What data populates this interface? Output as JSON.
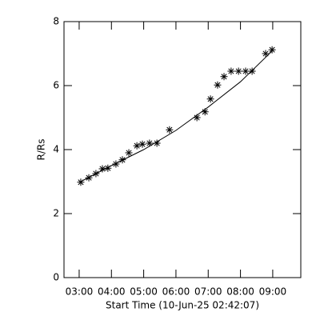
{
  "chart_data": {
    "type": "scatter",
    "xlabel": "Start Time (10-Jun-25 02:42:07)",
    "ylabel": "R/Rs",
    "x": [
      3.05,
      3.3,
      3.52,
      3.72,
      3.89,
      4.14,
      4.34,
      4.54,
      4.79,
      4.96,
      5.18,
      5.41,
      5.8,
      6.65,
      6.9,
      7.07,
      7.29,
      7.49,
      7.71,
      7.94,
      8.16,
      8.36,
      8.78,
      8.98
    ],
    "y": [
      2.98,
      3.12,
      3.25,
      3.4,
      3.42,
      3.55,
      3.68,
      3.9,
      4.12,
      4.17,
      4.2,
      4.2,
      4.62,
      5.0,
      5.18,
      5.58,
      6.02,
      6.28,
      6.45,
      6.45,
      6.45,
      6.45,
      7.0,
      7.12
    ],
    "fit": {
      "x": [
        3.05,
        4,
        5,
        6,
        7,
        8,
        8.98
      ],
      "y": [
        3.0,
        3.5,
        4.0,
        4.6,
        5.33,
        6.12,
        7.08
      ]
    },
    "color": "#000000",
    "xlim": [
      2.53,
      9.87
    ],
    "xticks": [
      {
        "value": 3,
        "label": "03:00"
      },
      {
        "value": 4,
        "label": "04:00"
      },
      {
        "value": 5,
        "label": "05:00"
      },
      {
        "value": 6,
        "label": "06:00"
      },
      {
        "value": 7,
        "label": "07:00"
      },
      {
        "value": 8,
        "label": "08:00"
      },
      {
        "value": 9,
        "label": "09:00"
      }
    ],
    "ylim": [
      0,
      8
    ],
    "yticks": [
      0,
      2,
      4,
      6,
      8
    ],
    "grid": false
  }
}
